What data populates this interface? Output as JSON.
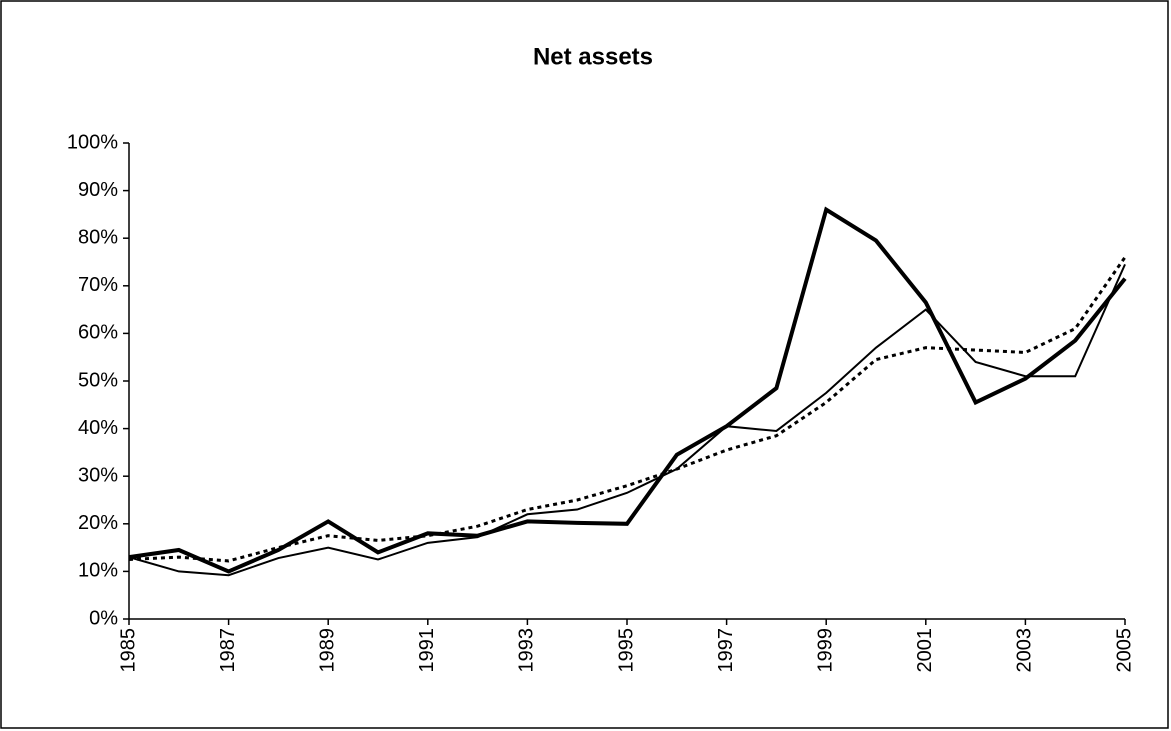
{
  "chart_data": {
    "type": "line",
    "title": "Net assets",
    "x": [
      1985,
      1986,
      1987,
      1988,
      1989,
      1990,
      1991,
      1992,
      1993,
      1994,
      1995,
      1996,
      1997,
      1998,
      1999,
      2000,
      2001,
      2002,
      2003,
      2004,
      2005
    ],
    "xlim": [
      1985,
      2005
    ],
    "xticks": [
      1985,
      1987,
      1989,
      1991,
      1993,
      1995,
      1997,
      1999,
      2001,
      2003,
      2005
    ],
    "ylim": [
      0,
      100
    ],
    "yticks": [
      {
        "value": 0,
        "label": "0%"
      },
      {
        "value": 10,
        "label": "10%"
      },
      {
        "value": 20,
        "label": "20%"
      },
      {
        "value": 30,
        "label": "30%"
      },
      {
        "value": 40,
        "label": "40%"
      },
      {
        "value": 50,
        "label": "50%"
      },
      {
        "value": 60,
        "label": "60%"
      },
      {
        "value": 70,
        "label": "70%"
      },
      {
        "value": 80,
        "label": "80%"
      },
      {
        "value": 90,
        "label": "90%"
      },
      {
        "value": 100,
        "label": "100%"
      }
    ],
    "series": [
      {
        "color": "#000000",
        "width": 4,
        "dash": "none",
        "values": [
          13,
          14.5,
          10,
          14.5,
          20.5,
          14,
          18,
          17.5,
          20.5,
          20.2,
          20,
          34.5,
          40.5,
          48.5,
          86,
          79.5,
          66.5,
          45.5,
          50.5,
          58.5,
          71.5
        ]
      },
      {
        "color": "#000000",
        "width": 2,
        "dash": "none",
        "values": [
          13,
          10,
          9.2,
          12.8,
          15,
          12.5,
          16,
          17.2,
          22,
          23,
          26.5,
          31.5,
          40.5,
          39.5,
          47.5,
          57,
          65,
          54,
          51,
          51,
          74.5
        ]
      },
      {
        "color": "#000000",
        "width": 3,
        "dash": "4 4",
        "values": [
          12.5,
          13,
          12.2,
          15,
          17.5,
          16.5,
          17.5,
          19.5,
          23,
          25,
          28,
          31.5,
          35.5,
          38.5,
          45.5,
          54.5,
          57,
          56.5,
          56,
          61,
          76
        ]
      }
    ]
  }
}
